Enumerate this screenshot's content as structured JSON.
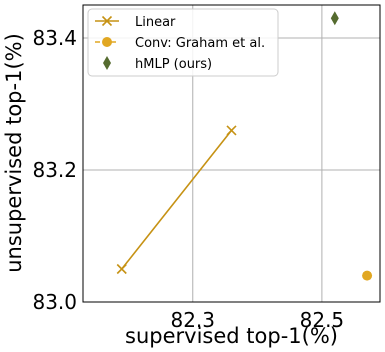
{
  "chart_data": {
    "type": "scatter",
    "xlabel": "supervised top-1(%)",
    "ylabel": "unsupervised top-1(%)",
    "xlim": [
      82.13,
      82.59
    ],
    "ylim": [
      83.0,
      83.45
    ],
    "xticks": [
      82.3,
      82.5
    ],
    "yticks": [
      83.0,
      83.2,
      83.4
    ],
    "grid": true,
    "legend_position": "top-left",
    "series": [
      {
        "name": "Linear",
        "marker": "x",
        "line": true,
        "color": "#c69214",
        "points": [
          [
            82.19,
            83.05
          ],
          [
            82.36,
            83.26
          ]
        ]
      },
      {
        "name": "Conv: Graham et al.",
        "marker": "circle",
        "line": true,
        "color": "#e1a722",
        "points": [
          [
            82.57,
            83.04
          ]
        ]
      },
      {
        "name": "hMLP (ours)",
        "marker": "diamond",
        "line": false,
        "color": "#556b2f",
        "points": [
          [
            82.52,
            83.43
          ]
        ]
      }
    ]
  }
}
